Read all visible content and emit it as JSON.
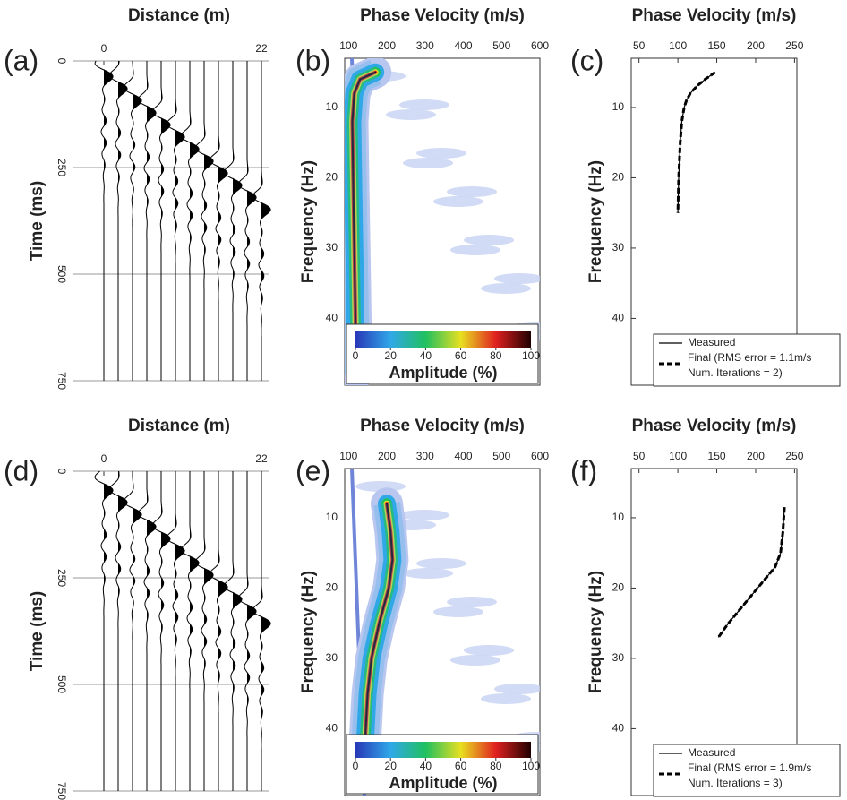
{
  "chart_data": [
    {
      "type": "seismogram",
      "panel_label": "(a)",
      "title": "Distance (m)",
      "ylabel": "Time (ms)",
      "xlim": [
        -2,
        23
      ],
      "xticks": [
        0,
        22
      ],
      "ylim": [
        0,
        750
      ],
      "yticks": [
        0,
        250,
        500,
        750
      ],
      "grid": true
    },
    {
      "type": "dispersion",
      "panel_label": "(b)",
      "title": "Phase Velocity (m/s)",
      "ylabel": "Frequency (Hz)",
      "xlim": [
        90,
        600
      ],
      "xticks": [
        100,
        200,
        300,
        400,
        500,
        600
      ],
      "ylim": [
        3,
        49.5
      ],
      "yticks": [
        10,
        20,
        30,
        40
      ],
      "ridge": {
        "x": [
          170,
          130,
          115,
          110,
          112,
          115,
          118,
          120
        ],
        "y": [
          5,
          6,
          8,
          12,
          20,
          30,
          40,
          48
        ]
      },
      "colorbar": {
        "label": "Amplitude (%)",
        "ticks": [
          0,
          20,
          40,
          60,
          80,
          100
        ],
        "colors": [
          "#2838b8",
          "#30a8e8",
          "#20c060",
          "#e8e020",
          "#e02020",
          "#200000"
        ]
      }
    },
    {
      "type": "line",
      "panel_label": "(c)",
      "title": "Phase Velocity (m/s)",
      "ylabel": "Frequency (Hz)",
      "xlim": [
        40,
        253
      ],
      "xticks": [
        50,
        100,
        150,
        200,
        250
      ],
      "ylim": [
        3,
        49.5
      ],
      "yticks": [
        10,
        20,
        30,
        40
      ],
      "legend": "lower right",
      "legend_note": "Num. Iterations = 2)",
      "series": [
        {
          "name": "Measured",
          "color": "#000000",
          "style": "solid",
          "x": [
            148,
            135,
            124,
            116,
            111,
            108,
            105,
            103,
            101,
            100
          ],
          "y": [
            5,
            6,
            7,
            8,
            9,
            10,
            12,
            15,
            20,
            25
          ]
        },
        {
          "name": "Final (RMS error = 1.1m/s",
          "color": "#000000",
          "style": "dashed",
          "x": [
            148,
            135,
            124,
            116,
            111,
            108,
            105,
            103,
            101,
            100
          ],
          "y": [
            5,
            6,
            7,
            8,
            9,
            10,
            12,
            15,
            20,
            25
          ]
        }
      ]
    },
    {
      "type": "seismogram",
      "panel_label": "(d)",
      "title": "Distance (m)",
      "ylabel": "Time (ms)",
      "xlim": [
        -2,
        23
      ],
      "xticks": [
        0,
        22
      ],
      "ylim": [
        0,
        750
      ],
      "yticks": [
        0,
        250,
        500,
        750
      ],
      "grid": true
    },
    {
      "type": "dispersion",
      "panel_label": "(e)",
      "title": "Phase Velocity (m/s)",
      "ylabel": "Frequency (Hz)",
      "xlim": [
        90,
        600
      ],
      "xticks": [
        100,
        200,
        300,
        400,
        500,
        600
      ],
      "ylim": [
        3,
        49.5
      ],
      "yticks": [
        10,
        20,
        30,
        40
      ],
      "ridge": {
        "x": [
          200,
          210,
          215,
          205,
          180,
          160,
          150,
          145,
          140
        ],
        "y": [
          8,
          12,
          16,
          20,
          25,
          30,
          35,
          40,
          45
        ]
      },
      "colorbar": {
        "label": "Amplitude (%)",
        "ticks": [
          0,
          20,
          40,
          60,
          80,
          100
        ],
        "colors": [
          "#2838b8",
          "#30a8e8",
          "#20c060",
          "#e8e020",
          "#e02020",
          "#200000"
        ]
      }
    },
    {
      "type": "line",
      "panel_label": "(f)",
      "title": "Phase Velocity (m/s)",
      "ylabel": "Frequency (Hz)",
      "xlim": [
        40,
        253
      ],
      "xticks": [
        50,
        100,
        150,
        200,
        250
      ],
      "ylim": [
        3,
        49.5
      ],
      "yticks": [
        10,
        20,
        30,
        40
      ],
      "legend": "lower right",
      "legend_note": "Num. Iterations = 3)",
      "series": [
        {
          "name": "Measured",
          "color": "#000000",
          "style": "solid",
          "x": [
            237,
            235,
            232,
            225,
            210,
            195,
            180,
            165,
            152
          ],
          "y": [
            8.5,
            12,
            15,
            17,
            19,
            21,
            23,
            25,
            27
          ]
        },
        {
          "name": "Final (RMS error = 1.9m/s",
          "color": "#000000",
          "style": "dashed",
          "x": [
            237,
            235,
            232,
            225,
            210,
            195,
            180,
            165,
            152
          ],
          "y": [
            8.5,
            12,
            15,
            17,
            19,
            21,
            23,
            25,
            27
          ]
        }
      ]
    }
  ]
}
